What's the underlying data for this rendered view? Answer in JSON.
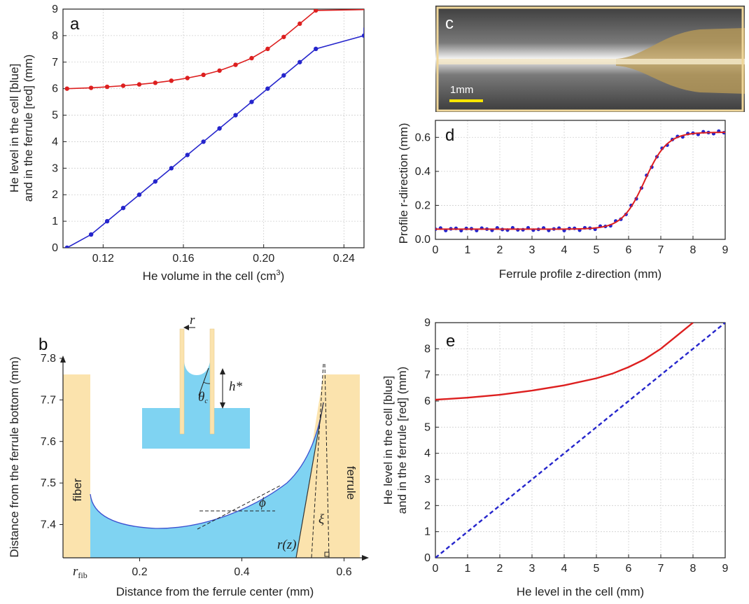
{
  "colors": {
    "blue": "#2525cc",
    "red": "#dd1f1f",
    "fill_blue": "#7fd3f2",
    "wall": "#fbe3ad",
    "scale_bar": "#ffe600"
  },
  "chart_data": [
    {
      "panel": "a",
      "type": "line",
      "xlabel": "He volume in the cell (cm",
      "xlabel_sup": "3",
      "xlabel_end": ")",
      "ylabel_lines": [
        "He level in the cell [blue]",
        "and in the ferrule [red] (mm)"
      ],
      "xlim": [
        0.1,
        0.25
      ],
      "ylim": [
        0,
        9
      ],
      "xticks": [
        0.12,
        0.16,
        0.2,
        0.24
      ],
      "xtick_labels": [
        "0.12",
        "0.16",
        "0.20",
        "0.24"
      ],
      "yticks": [
        0,
        1,
        2,
        3,
        4,
        5,
        6,
        7,
        8,
        9
      ],
      "ytick_labels": [
        "0",
        "1",
        "2",
        "3",
        "4",
        "5",
        "6",
        "7",
        "8",
        "9"
      ],
      "series": [
        {
          "color": "blue",
          "markers": true,
          "x": [
            0.102,
            0.114,
            0.122,
            0.13,
            0.138,
            0.146,
            0.154,
            0.162,
            0.17,
            0.178,
            0.186,
            0.194,
            0.202,
            0.21,
            0.218,
            0.226,
            0.25
          ],
          "y": [
            0,
            0.5,
            1.0,
            1.5,
            2.0,
            2.5,
            3.0,
            3.5,
            4.0,
            4.5,
            5.0,
            5.5,
            6.0,
            6.5,
            7.0,
            7.5,
            8.0
          ],
          "tail_x": [
            0.25
          ],
          "tail_y": [
            8.3
          ]
        },
        {
          "color": "red",
          "markers": true,
          "x": [
            0.102,
            0.114,
            0.122,
            0.13,
            0.138,
            0.146,
            0.154,
            0.162,
            0.17,
            0.178,
            0.186,
            0.194,
            0.202,
            0.21,
            0.218,
            0.226
          ],
          "y": [
            6.0,
            6.03,
            6.07,
            6.11,
            6.16,
            6.22,
            6.3,
            6.4,
            6.52,
            6.68,
            6.9,
            7.15,
            7.5,
            7.95,
            8.45,
            8.95
          ],
          "tail_x": [
            0.25
          ],
          "tail_y": [
            8.98
          ]
        }
      ]
    },
    {
      "panel": "d",
      "type": "scatter",
      "xlabel": "Ferrule profile z-direction (mm)",
      "ylabel": "Profile r-direction (mm)",
      "xlim": [
        0,
        9
      ],
      "ylim": [
        0,
        0.7
      ],
      "xticks": [
        0,
        1,
        2,
        3,
        4,
        5,
        6,
        7,
        8,
        9
      ],
      "xtick_labels": [
        "0",
        "1",
        "2",
        "3",
        "4",
        "5",
        "6",
        "7",
        "8",
        "9"
      ],
      "yticks": [
        0,
        0.2,
        0.4,
        0.6
      ],
      "ytick_labels": [
        "0.0",
        "0.2",
        "0.4",
        "0.6"
      ],
      "fit": {
        "color": "red",
        "baseline": 0.06,
        "plateau": 0.63,
        "center": 6.5,
        "width": 0.35
      },
      "points_color": "blue"
    },
    {
      "panel": "e",
      "type": "line",
      "xlabel": "He level in the cell (mm)",
      "ylabel_lines": [
        "He level in the cell [blue]",
        "and in the ferrule [red] (mm)"
      ],
      "xlim": [
        0,
        9
      ],
      "ylim": [
        0,
        9
      ],
      "xticks": [
        0,
        1,
        2,
        3,
        4,
        5,
        6,
        7,
        8,
        9
      ],
      "xtick_labels": [
        "0",
        "1",
        "2",
        "3",
        "4",
        "5",
        "6",
        "7",
        "8",
        "9"
      ],
      "yticks": [
        0,
        1,
        2,
        3,
        4,
        5,
        6,
        7,
        8,
        9
      ],
      "ytick_labels": [
        "0",
        "1",
        "2",
        "3",
        "4",
        "5",
        "6",
        "7",
        "8",
        "9"
      ],
      "series": [
        {
          "color": "red",
          "style": "solid",
          "x": [
            0,
            1,
            2,
            3,
            4,
            5,
            5.5,
            6,
            6.5,
            7,
            7.5,
            8.0
          ],
          "y": [
            6.05,
            6.13,
            6.24,
            6.4,
            6.6,
            6.87,
            7.05,
            7.3,
            7.6,
            8.0,
            8.5,
            9.0
          ]
        },
        {
          "color": "blue",
          "style": "dashed",
          "x": [
            0,
            9
          ],
          "y": [
            0,
            9
          ]
        }
      ]
    },
    {
      "panel": "b",
      "type": "diagram",
      "xlabel": "Distance from the ferrule center (mm)",
      "ylabel": "Distance from the ferrule bottom (mm)",
      "xlim": [
        0.05,
        0.65
      ],
      "ylim": [
        7.32,
        7.8
      ],
      "xticks": [
        0.2,
        0.4,
        0.6
      ],
      "xtick_labels": [
        "0.2",
        "0.4",
        "0.6"
      ],
      "yticks": [
        7.4,
        7.5,
        7.6,
        7.7,
        7.8
      ],
      "ytick_labels": [
        "7.4",
        "7.5",
        "7.6",
        "7.7",
        "7.8"
      ],
      "r_fib_label": "r",
      "r_fib_sub": "fib",
      "fiber_label": "fiber",
      "ferrule_label": "ferrule",
      "phi_label": "ϕ",
      "rz_label": "r(z)",
      "xi_label": "ξ",
      "inset": {
        "r_label": "r",
        "h_label": "h*",
        "theta_label": "θ",
        "theta_sub": "c"
      }
    },
    {
      "panel": "c",
      "type": "image",
      "scale_label": "1mm"
    }
  ],
  "panel_letters": {
    "a": "a",
    "b": "b",
    "c": "c",
    "d": "d",
    "e": "e"
  }
}
